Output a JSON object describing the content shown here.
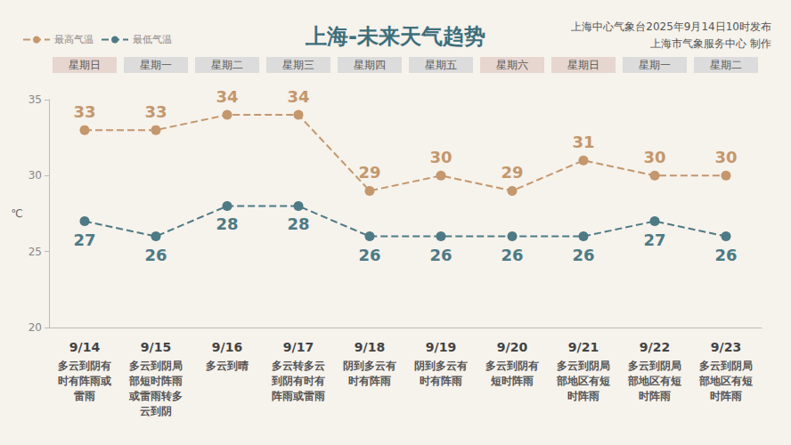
{
  "chart_data": {
    "type": "line",
    "title": "上海-未来天气趋势",
    "annotations": [
      "上海中心气象台2025年9月14日10时发布",
      "上海市气象服务中心 制作"
    ],
    "y_label": "℃",
    "categories": [
      "9/14",
      "9/15",
      "9/16",
      "9/17",
      "9/18",
      "9/19",
      "9/20",
      "9/21",
      "9/22",
      "9/23"
    ],
    "weekdays": [
      "星期日",
      "星期一",
      "星期二",
      "星期三",
      "星期四",
      "星期五",
      "星期六",
      "星期日",
      "星期一",
      "星期二"
    ],
    "weather": [
      "多云到阴有时有阵雨或雷雨",
      "多云到阴局部短时阵雨或雷雨转多云到阴",
      "多云到晴",
      "多云转多云到阴有时有阵雨或雷雨",
      "阴到多云有时有阵雨",
      "阴到多云有时有阵雨",
      "多云到阴有短时阵雨",
      "多云到阴局部地区有短时阵雨",
      "多云到阴局部地区有短时阵雨",
      "多云到阴局部地区有短时阵雨"
    ],
    "series": [
      {
        "name": "最高气温",
        "color": "#c4976c",
        "marker": "circle",
        "line_style": "dashed",
        "values": [
          33,
          33,
          34,
          34,
          29,
          30,
          29,
          31,
          30,
          30
        ]
      },
      {
        "name": "最低气温",
        "color": "#4d7a85",
        "marker": "circle",
        "line_style": "dashed",
        "values": [
          27,
          26,
          28,
          28,
          26,
          26,
          26,
          26,
          27,
          26
        ]
      }
    ],
    "ylim": [
      20,
      35
    ],
    "yticks": [
      20,
      25,
      30,
      35
    ],
    "grid": false,
    "legend": "top-left",
    "data_labels": true
  }
}
